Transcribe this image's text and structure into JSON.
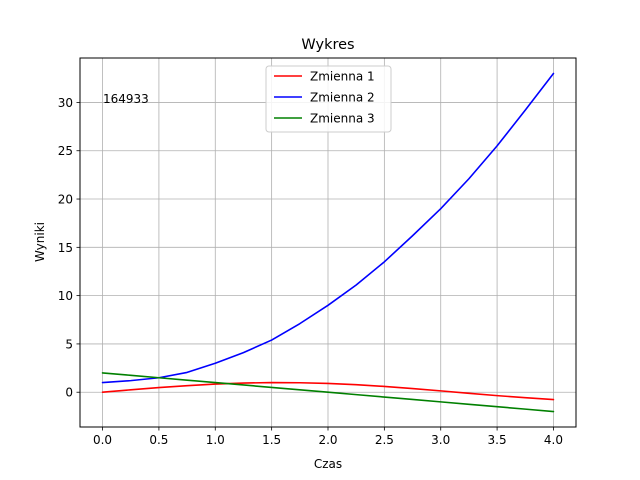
{
  "chart_data": {
    "type": "line",
    "title": "Wykres",
    "xlabel": "Czas",
    "ylabel": "Wyniki",
    "annotation": "164933",
    "xlim": [
      -0.2,
      4.2
    ],
    "ylim": [
      -3.6,
      34.6
    ],
    "x_ticks": [
      0.0,
      0.5,
      1.0,
      1.5,
      2.0,
      2.5,
      3.0,
      3.5,
      4.0
    ],
    "x_tick_labels": [
      "0.0",
      "0.5",
      "1.0",
      "1.5",
      "2.0",
      "2.5",
      "3.0",
      "3.5",
      "4.0"
    ],
    "y_ticks": [
      0,
      5,
      10,
      15,
      20,
      25,
      30
    ],
    "y_tick_labels": [
      "0",
      "5",
      "10",
      "15",
      "20",
      "25",
      "30"
    ],
    "grid": true,
    "legend_position": "top-center",
    "x": [
      0.0,
      0.25,
      0.5,
      0.75,
      1.0,
      1.25,
      1.5,
      1.75,
      2.0,
      2.25,
      2.5,
      2.75,
      3.0,
      3.25,
      3.5,
      3.75,
      4.0
    ],
    "series": [
      {
        "name": "Zmienna 1",
        "color": "#ff0000",
        "values": [
          0.0,
          0.25,
          0.48,
          0.68,
          0.84,
          0.95,
          1.0,
          0.98,
          0.91,
          0.78,
          0.6,
          0.38,
          0.14,
          -0.11,
          -0.35,
          -0.57,
          -0.76
        ]
      },
      {
        "name": "Zmienna 2",
        "color": "#0000ff",
        "values": [
          1.0,
          1.2,
          1.5,
          2.05,
          3.0,
          4.1,
          5.4,
          7.1,
          9.0,
          11.1,
          13.5,
          16.2,
          19.0,
          22.1,
          25.5,
          29.2,
          33.0
        ]
      },
      {
        "name": "Zmienna 3",
        "color": "#008000",
        "values": [
          2.0,
          1.75,
          1.5,
          1.25,
          1.0,
          0.75,
          0.5,
          0.25,
          0.0,
          -0.25,
          -0.5,
          -0.75,
          -1.0,
          -1.25,
          -1.5,
          -1.75,
          -2.0
        ]
      }
    ]
  }
}
